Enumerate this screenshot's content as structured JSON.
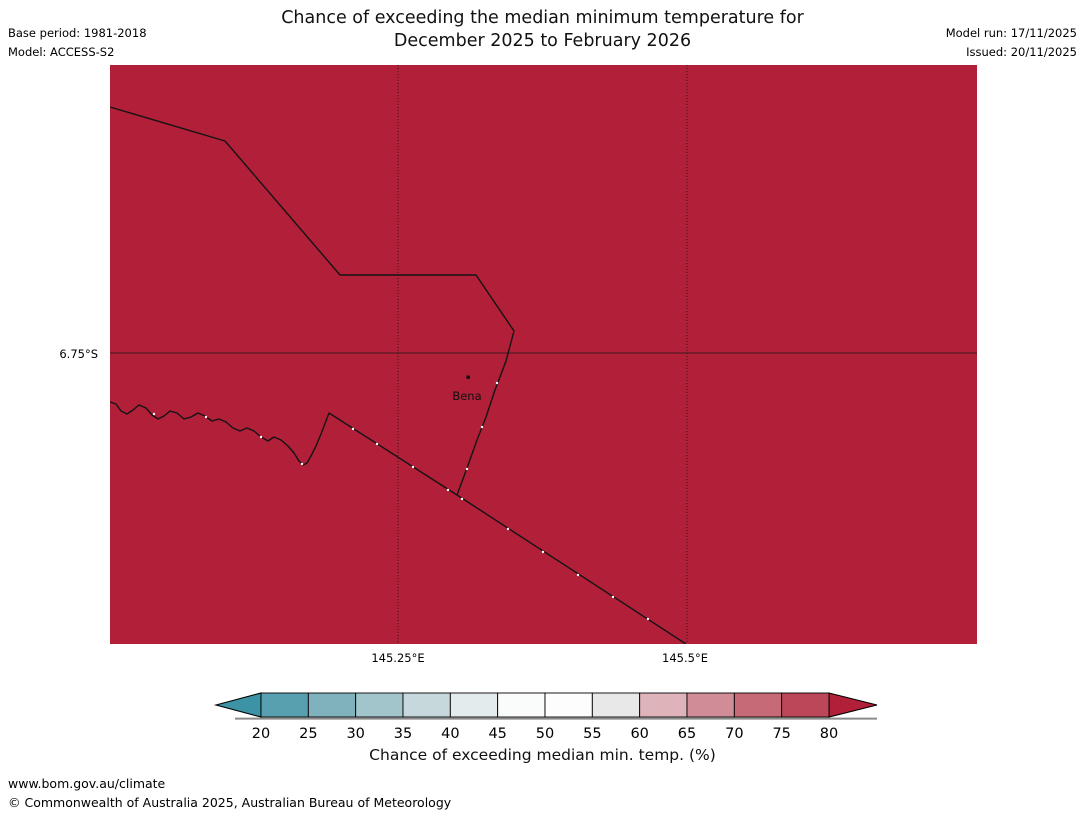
{
  "header": {
    "base_period": "Base period: 1981-2018",
    "model": "Model: ACCESS-S2",
    "title_line1": "Chance of exceeding the median minimum temperature for",
    "title_line2": "December 2025 to February 2026",
    "model_run": "Model run: 17/11/2025",
    "issued": "Issued: 20/11/2025"
  },
  "map": {
    "fill_color": "#b11f38",
    "line_color": "#141414",
    "place_label": "Bena",
    "lat_label": "6.75°S",
    "lon_labels": [
      "145.25°E",
      "145.5°E"
    ]
  },
  "colorbar": {
    "label": "Chance of exceeding median min. temp. (%)",
    "ticks": [
      "20",
      "25",
      "30",
      "35",
      "40",
      "45",
      "50",
      "55",
      "60",
      "65",
      "70",
      "75",
      "80"
    ],
    "segment_colors": [
      "#58a0b0",
      "#7fb2bd",
      "#a2c5cb",
      "#c6d8db",
      "#e3ebed",
      "#fafbfb",
      "#fdfdfd",
      "#e8e8e8",
      "#deb3ba",
      "#d18d97",
      "#c56a76",
      "#bb4759"
    ],
    "left_arrow_color": "#3b93a5",
    "right_arrow_color": "#b11f38",
    "outline_color": "#000000",
    "shadow_color": "#8a8a8a"
  },
  "footer": {
    "url": "www.bom.gov.au/climate",
    "copyright": "© Commonwealth of Australia 2025, Australian Bureau of Meteorology"
  }
}
